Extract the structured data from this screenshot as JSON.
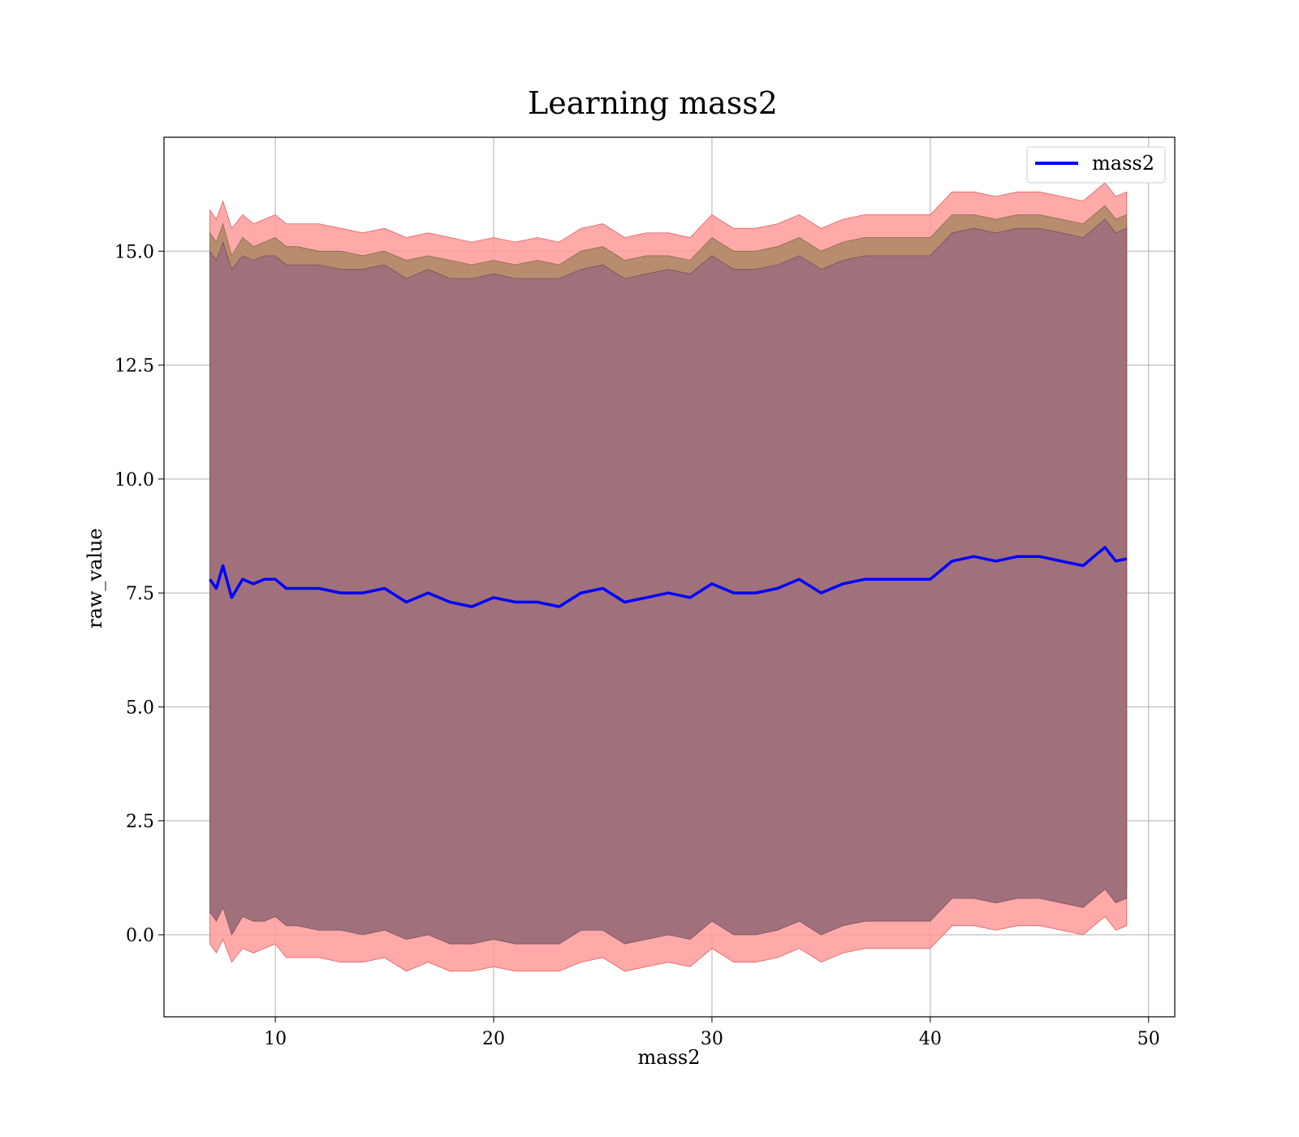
{
  "chart_data": {
    "type": "line",
    "title": "Learning mass2",
    "xlabel": "mass2",
    "ylabel": "raw_value",
    "xlim": [
      4.9,
      51.2
    ],
    "ylim": [
      -1.8,
      17.5
    ],
    "xticks": [
      10,
      20,
      30,
      40,
      50
    ],
    "xtick_labels": [
      "10",
      "20",
      "30",
      "40",
      "50"
    ],
    "yticks": [
      0.0,
      2.5,
      5.0,
      7.5,
      10.0,
      12.5,
      15.0
    ],
    "ytick_labels": [
      "0.0",
      "2.5",
      "5.0",
      "7.5",
      "10.0",
      "12.5",
      "15.0"
    ],
    "grid": true,
    "legend": {
      "position": "top-right",
      "entries": [
        "mass2"
      ]
    },
    "colors": {
      "line": "#0000ff",
      "outer_band": "#ff9a9a",
      "mid_band": "#b08a66",
      "inner_band": "#a0717a"
    },
    "x": [
      7.0,
      7.3,
      7.6,
      8.0,
      8.5,
      9.0,
      9.5,
      10.0,
      10.5,
      11.0,
      12.0,
      13.0,
      14.0,
      15.0,
      16.0,
      17.0,
      18.0,
      19.0,
      20.0,
      21.0,
      22.0,
      23.0,
      24.0,
      25.0,
      26.0,
      27.0,
      28.0,
      29.0,
      30.0,
      31.0,
      32.0,
      33.0,
      34.0,
      35.0,
      36.0,
      37.0,
      38.0,
      39.0,
      40.0,
      41.0,
      42.0,
      43.0,
      44.0,
      45.0,
      46.0,
      47.0,
      47.5,
      48.0,
      48.5,
      49.0
    ],
    "series": [
      {
        "name": "mass2",
        "role": "line",
        "values": [
          7.8,
          7.6,
          8.1,
          7.4,
          7.8,
          7.7,
          7.8,
          7.8,
          7.6,
          7.6,
          7.6,
          7.5,
          7.5,
          7.6,
          7.3,
          7.5,
          7.3,
          7.2,
          7.4,
          7.3,
          7.3,
          7.2,
          7.5,
          7.6,
          7.3,
          7.4,
          7.5,
          7.4,
          7.7,
          7.5,
          7.5,
          7.6,
          7.8,
          7.5,
          7.7,
          7.8,
          7.8,
          7.8,
          7.8,
          8.2,
          8.3,
          8.2,
          8.3,
          8.3,
          8.2,
          8.1,
          8.3,
          8.5,
          8.2,
          8.25
        ]
      },
      {
        "role": "outer_band",
        "upper": [
          15.9,
          15.7,
          16.1,
          15.5,
          15.8,
          15.6,
          15.7,
          15.8,
          15.6,
          15.6,
          15.6,
          15.5,
          15.4,
          15.5,
          15.3,
          15.4,
          15.3,
          15.2,
          15.3,
          15.2,
          15.3,
          15.2,
          15.5,
          15.6,
          15.3,
          15.4,
          15.4,
          15.3,
          15.8,
          15.5,
          15.5,
          15.6,
          15.8,
          15.5,
          15.7,
          15.8,
          15.8,
          15.8,
          15.8,
          16.3,
          16.3,
          16.2,
          16.3,
          16.3,
          16.2,
          16.1,
          16.3,
          16.5,
          16.2,
          16.3
        ],
        "lower": [
          -0.2,
          -0.4,
          -0.1,
          -0.6,
          -0.3,
          -0.4,
          -0.3,
          -0.2,
          -0.5,
          -0.5,
          -0.5,
          -0.6,
          -0.6,
          -0.5,
          -0.8,
          -0.6,
          -0.8,
          -0.8,
          -0.7,
          -0.8,
          -0.8,
          -0.8,
          -0.6,
          -0.5,
          -0.8,
          -0.7,
          -0.6,
          -0.7,
          -0.3,
          -0.6,
          -0.6,
          -0.5,
          -0.3,
          -0.6,
          -0.4,
          -0.3,
          -0.3,
          -0.3,
          -0.3,
          0.2,
          0.2,
          0.1,
          0.2,
          0.2,
          0.1,
          0.0,
          0.2,
          0.4,
          0.1,
          0.2
        ]
      },
      {
        "role": "mid_band",
        "upper": [
          15.4,
          15.2,
          15.6,
          14.9,
          15.3,
          15.1,
          15.2,
          15.3,
          15.1,
          15.1,
          15.0,
          15.0,
          14.9,
          15.0,
          14.8,
          14.9,
          14.8,
          14.7,
          14.8,
          14.7,
          14.8,
          14.7,
          15.0,
          15.1,
          14.8,
          14.9,
          14.9,
          14.8,
          15.3,
          15.0,
          15.0,
          15.1,
          15.3,
          15.0,
          15.2,
          15.3,
          15.3,
          15.3,
          15.3,
          15.8,
          15.8,
          15.7,
          15.8,
          15.8,
          15.7,
          15.6,
          15.8,
          16.0,
          15.7,
          15.8
        ],
        "lower": [
          0.6,
          0.4,
          0.7,
          0.2,
          0.5,
          0.4,
          0.4,
          0.5,
          0.3,
          0.3,
          0.2,
          0.2,
          0.1,
          0.2,
          0.0,
          0.1,
          0.0,
          -0.1,
          0.0,
          -0.1,
          0.0,
          -0.1,
          0.2,
          0.3,
          0.0,
          0.1,
          0.1,
          0.0,
          0.5,
          0.2,
          0.2,
          0.3,
          0.5,
          0.2,
          0.4,
          0.5,
          0.5,
          0.5,
          0.5,
          1.0,
          1.0,
          0.9,
          1.0,
          1.0,
          0.9,
          0.8,
          1.0,
          1.2,
          0.9,
          1.0
        ]
      },
      {
        "role": "inner_band",
        "upper": [
          15.0,
          14.8,
          15.2,
          14.6,
          14.9,
          14.8,
          14.9,
          14.9,
          14.7,
          14.7,
          14.7,
          14.6,
          14.6,
          14.7,
          14.4,
          14.6,
          14.4,
          14.4,
          14.5,
          14.4,
          14.4,
          14.4,
          14.6,
          14.7,
          14.4,
          14.5,
          14.6,
          14.5,
          14.9,
          14.6,
          14.6,
          14.7,
          14.9,
          14.6,
          14.8,
          14.9,
          14.9,
          14.9,
          14.9,
          15.4,
          15.5,
          15.4,
          15.5,
          15.5,
          15.4,
          15.3,
          15.5,
          15.7,
          15.4,
          15.5
        ],
        "lower": [
          0.5,
          0.3,
          0.6,
          0.0,
          0.4,
          0.3,
          0.3,
          0.4,
          0.2,
          0.2,
          0.1,
          0.1,
          0.0,
          0.1,
          -0.1,
          0.0,
          -0.2,
          -0.2,
          -0.1,
          -0.2,
          -0.2,
          -0.2,
          0.1,
          0.1,
          -0.2,
          -0.1,
          0.0,
          -0.1,
          0.3,
          0.0,
          0.0,
          0.1,
          0.3,
          0.0,
          0.2,
          0.3,
          0.3,
          0.3,
          0.3,
          0.8,
          0.8,
          0.7,
          0.8,
          0.8,
          0.7,
          0.6,
          0.8,
          1.0,
          0.7,
          0.8
        ]
      }
    ]
  }
}
